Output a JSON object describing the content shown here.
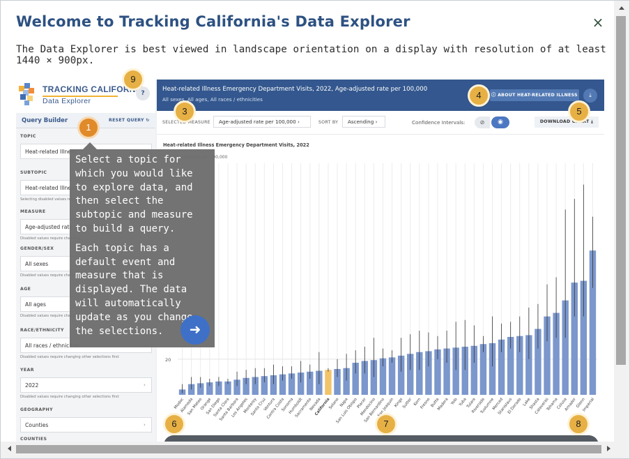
{
  "modal": {
    "title": "Welcome to Tracking California's Data Explorer",
    "subtitle": "The Data Explorer is best viewed in landscape orientation on a display with resolution of at least 1440 × 900px.",
    "close_label": "×"
  },
  "logo": {
    "name": "TRACKING CALIFORNIA",
    "sub": "Data Explorer",
    "help": "?"
  },
  "query_builder": {
    "title": "Query Builder",
    "reset_label": "RESET QUERY",
    "fields": [
      {
        "label": "TOPIC",
        "value": "Heat-related Illness",
        "note": ""
      },
      {
        "label": "SUBTOPIC",
        "value": "Heat-related Illness",
        "note": "Selecting disabled values require..."
      },
      {
        "label": "MEASURE",
        "value": "Age-adjusted rate per 100,000",
        "note": "Disabled values require changing..."
      },
      {
        "label": "GENDER/SEX",
        "value": "All sexes",
        "note": "Disabled values require changing..."
      },
      {
        "label": "AGE",
        "value": "All ages",
        "note": "Disabled values require changing..."
      },
      {
        "label": "RACE/ETHNICITY",
        "value": "All races / ethnicities",
        "note": "Disabled values require changing other selections first"
      },
      {
        "label": "YEAR",
        "value": "2022",
        "note": "Disabled values require changing other selections first"
      },
      {
        "label": "GEOGRAPHY",
        "value": "Counties",
        "note": ""
      },
      {
        "label": "COUNTIES",
        "value": "",
        "note": ""
      }
    ]
  },
  "banner": {
    "title": "Heat-related Illness Emergency Department Visits, 2022, Age-adjusted rate per 100,000",
    "subtitle": "All sexes, All ages, All races / ethnicities",
    "about_label": "ABOUT HEAT-RELATED ILLNESS",
    "download_icon": "download-icon"
  },
  "controls": {
    "measure_label": "SELECTED MEASURE",
    "measure_value": "Age-adjusted rate per 100,000",
    "sort_label": "SORT BY",
    "sort_value": "Ascending",
    "ci_label": "Confidence Intervals:",
    "download_chart_label": "DOWNLOAD CHART"
  },
  "tooltip": {
    "para1": "Select a topic for which you would like to explore data, and then select the subtopic and measure to build a query.",
    "para2": "Each topic has a default event and measure that is displayed. The data will automatically update as you change the selections.",
    "next_icon": "arrow-right-icon"
  },
  "badges": [
    "1",
    "3",
    "4",
    "5",
    "6",
    "7",
    "8",
    "9"
  ],
  "colors": {
    "bar": "#7b97cc",
    "highlight": "#f2c46a",
    "banner": "#33578e",
    "badge": "#e7b045"
  },
  "chart_data": {
    "type": "bar",
    "title": "Heat-related Illness Emergency Department Visits, 2022",
    "ylabel": "Age-adjusted rate per 100,000",
    "yticks": [
      "20"
    ],
    "ylim": [
      0,
      130
    ],
    "highlight": "California",
    "categories": [
      "Modoc",
      "Alameda",
      "San Mateo",
      "Orange",
      "San Diego",
      "Santa Clara",
      "Santa Barbara",
      "Los Angeles",
      "Monterey",
      "Santa Cruz",
      "Ventura",
      "Contra Costa",
      "Sonoma",
      "Humboldt",
      "Sacramento",
      "Nevada",
      "California",
      "Solano",
      "Napa",
      "San Luis Obispo",
      "Placer",
      "Mendocino",
      "San Bernardino",
      "San Joaquin",
      "Kings",
      "Sutter",
      "Kern",
      "Fresno",
      "Butte",
      "Madera",
      "Yolo",
      "Yuba",
      "Tulare",
      "Riverside",
      "Tuolumne",
      "Merced",
      "Stanislaus",
      "El Dorado",
      "Lake",
      "Shasta",
      "Calaveras",
      "Tehama",
      "Colusa",
      "Amador",
      "Glenn",
      "Imperial"
    ],
    "values": [
      3,
      6,
      6.5,
      7,
      7.5,
      7.5,
      8.5,
      9.5,
      10,
      10.5,
      11,
      11.5,
      12,
      12.5,
      13,
      13.5,
      14,
      14.5,
      15,
      18,
      19,
      19.5,
      20.5,
      21,
      22,
      23,
      24,
      24.5,
      25.5,
      26,
      26.5,
      27,
      27.5,
      28.5,
      29,
      31,
      32.5,
      33,
      33.5,
      37,
      44,
      46,
      53,
      63,
      64,
      81
    ],
    "ci_low": [
      1,
      3,
      4,
      5,
      5,
      6,
      5,
      6,
      6,
      7,
      6,
      8,
      9,
      7,
      9,
      6,
      13,
      10,
      8,
      12,
      12,
      10,
      16,
      18,
      13,
      14,
      14,
      16,
      20,
      18,
      14,
      14,
      18,
      24,
      16,
      24,
      26,
      24,
      20,
      26,
      30,
      32,
      32,
      44,
      44,
      60
    ],
    "ci_high": [
      6,
      10,
      10,
      9,
      10,
      9,
      13,
      14,
      15,
      15,
      17,
      16,
      16,
      19,
      17,
      24,
      15,
      20,
      23,
      25,
      27,
      32,
      26,
      25,
      32,
      34,
      36,
      35,
      33,
      36,
      41,
      42,
      39,
      33,
      44,
      40,
      41,
      44,
      49,
      51,
      62,
      66,
      104,
      110,
      118,
      100
    ]
  }
}
